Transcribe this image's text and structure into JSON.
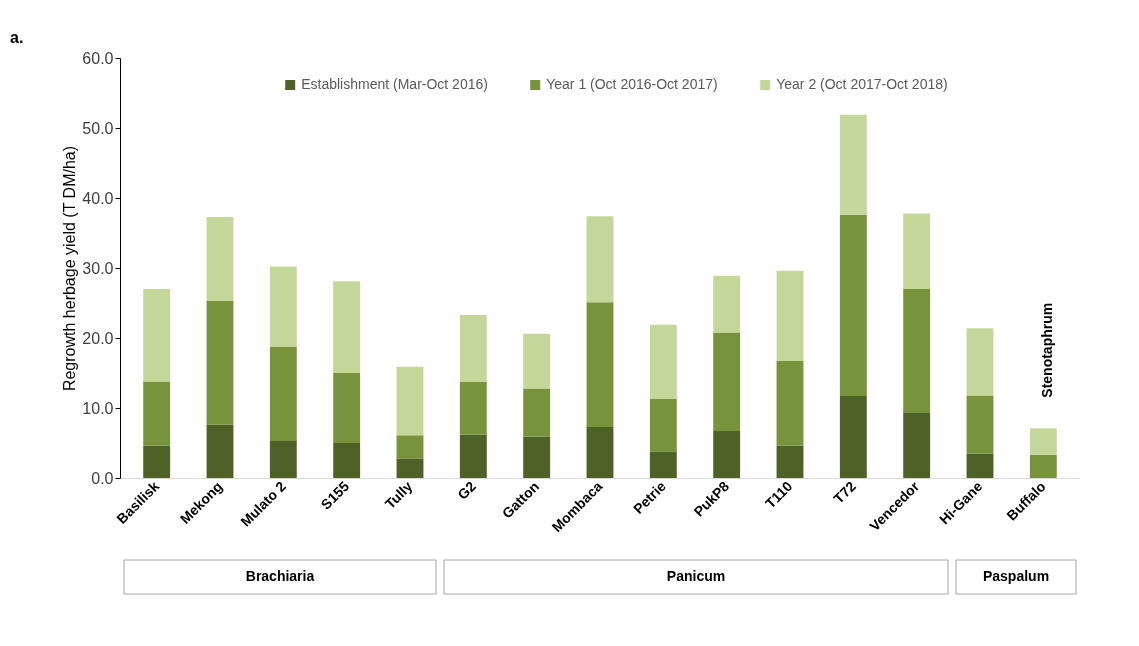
{
  "chart_data": {
    "type": "bar",
    "stacked": true,
    "ylabel": "Regrowth herbage yield (T DM/ha)",
    "categories": [
      "Basilisk",
      "Mekong",
      "Mulato 2",
      "S155",
      "Tully",
      "G2",
      "Gatton",
      "Mombaca",
      "Petrie",
      "PukP8",
      "T110",
      "T72",
      "Vencedor",
      "Hi-Gane",
      "Buffalo"
    ],
    "series": [
      {
        "name": "Establishment (Mar-Oct 2016)",
        "color": "#4e6228",
        "values": [
          4.6,
          7.6,
          5.3,
          5.0,
          2.8,
          6.2,
          5.9,
          7.3,
          3.8,
          6.7,
          4.6,
          11.7,
          9.4,
          3.5,
          null
        ]
      },
      {
        "name": "Year 1 (Oct 2016-Oct 2017)",
        "color": "#77933c",
        "values": [
          9.2,
          17.7,
          13.5,
          10.0,
          3.3,
          7.5,
          6.9,
          17.8,
          7.5,
          14.1,
          12.1,
          25.9,
          17.6,
          8.3,
          3.3
        ]
      },
      {
        "name": "Year 2 (Oct 2017-Oct 2018)",
        "color": "#c4d79b",
        "values": [
          13.2,
          12.0,
          11.4,
          13.1,
          9.8,
          9.6,
          7.8,
          12.3,
          10.6,
          8.1,
          12.9,
          14.3,
          10.8,
          9.6,
          3.8
        ]
      }
    ],
    "ylim": [
      0,
      60
    ],
    "yticks": [
      {
        "value": 0,
        "label": "0.0"
      },
      {
        "value": 10,
        "label": "10.0"
      },
      {
        "value": 20,
        "label": "20.0"
      },
      {
        "value": 30,
        "label": "30.0"
      },
      {
        "value": 40,
        "label": "40.0"
      },
      {
        "value": 50,
        "label": "50.0"
      },
      {
        "value": 60,
        "label": "60.0"
      }
    ],
    "grid": false,
    "legend": "top",
    "annotations": [
      "a.",
      "Brachiaria",
      "Panicum",
      "Paspalum",
      "Stenotaphrum"
    ]
  }
}
